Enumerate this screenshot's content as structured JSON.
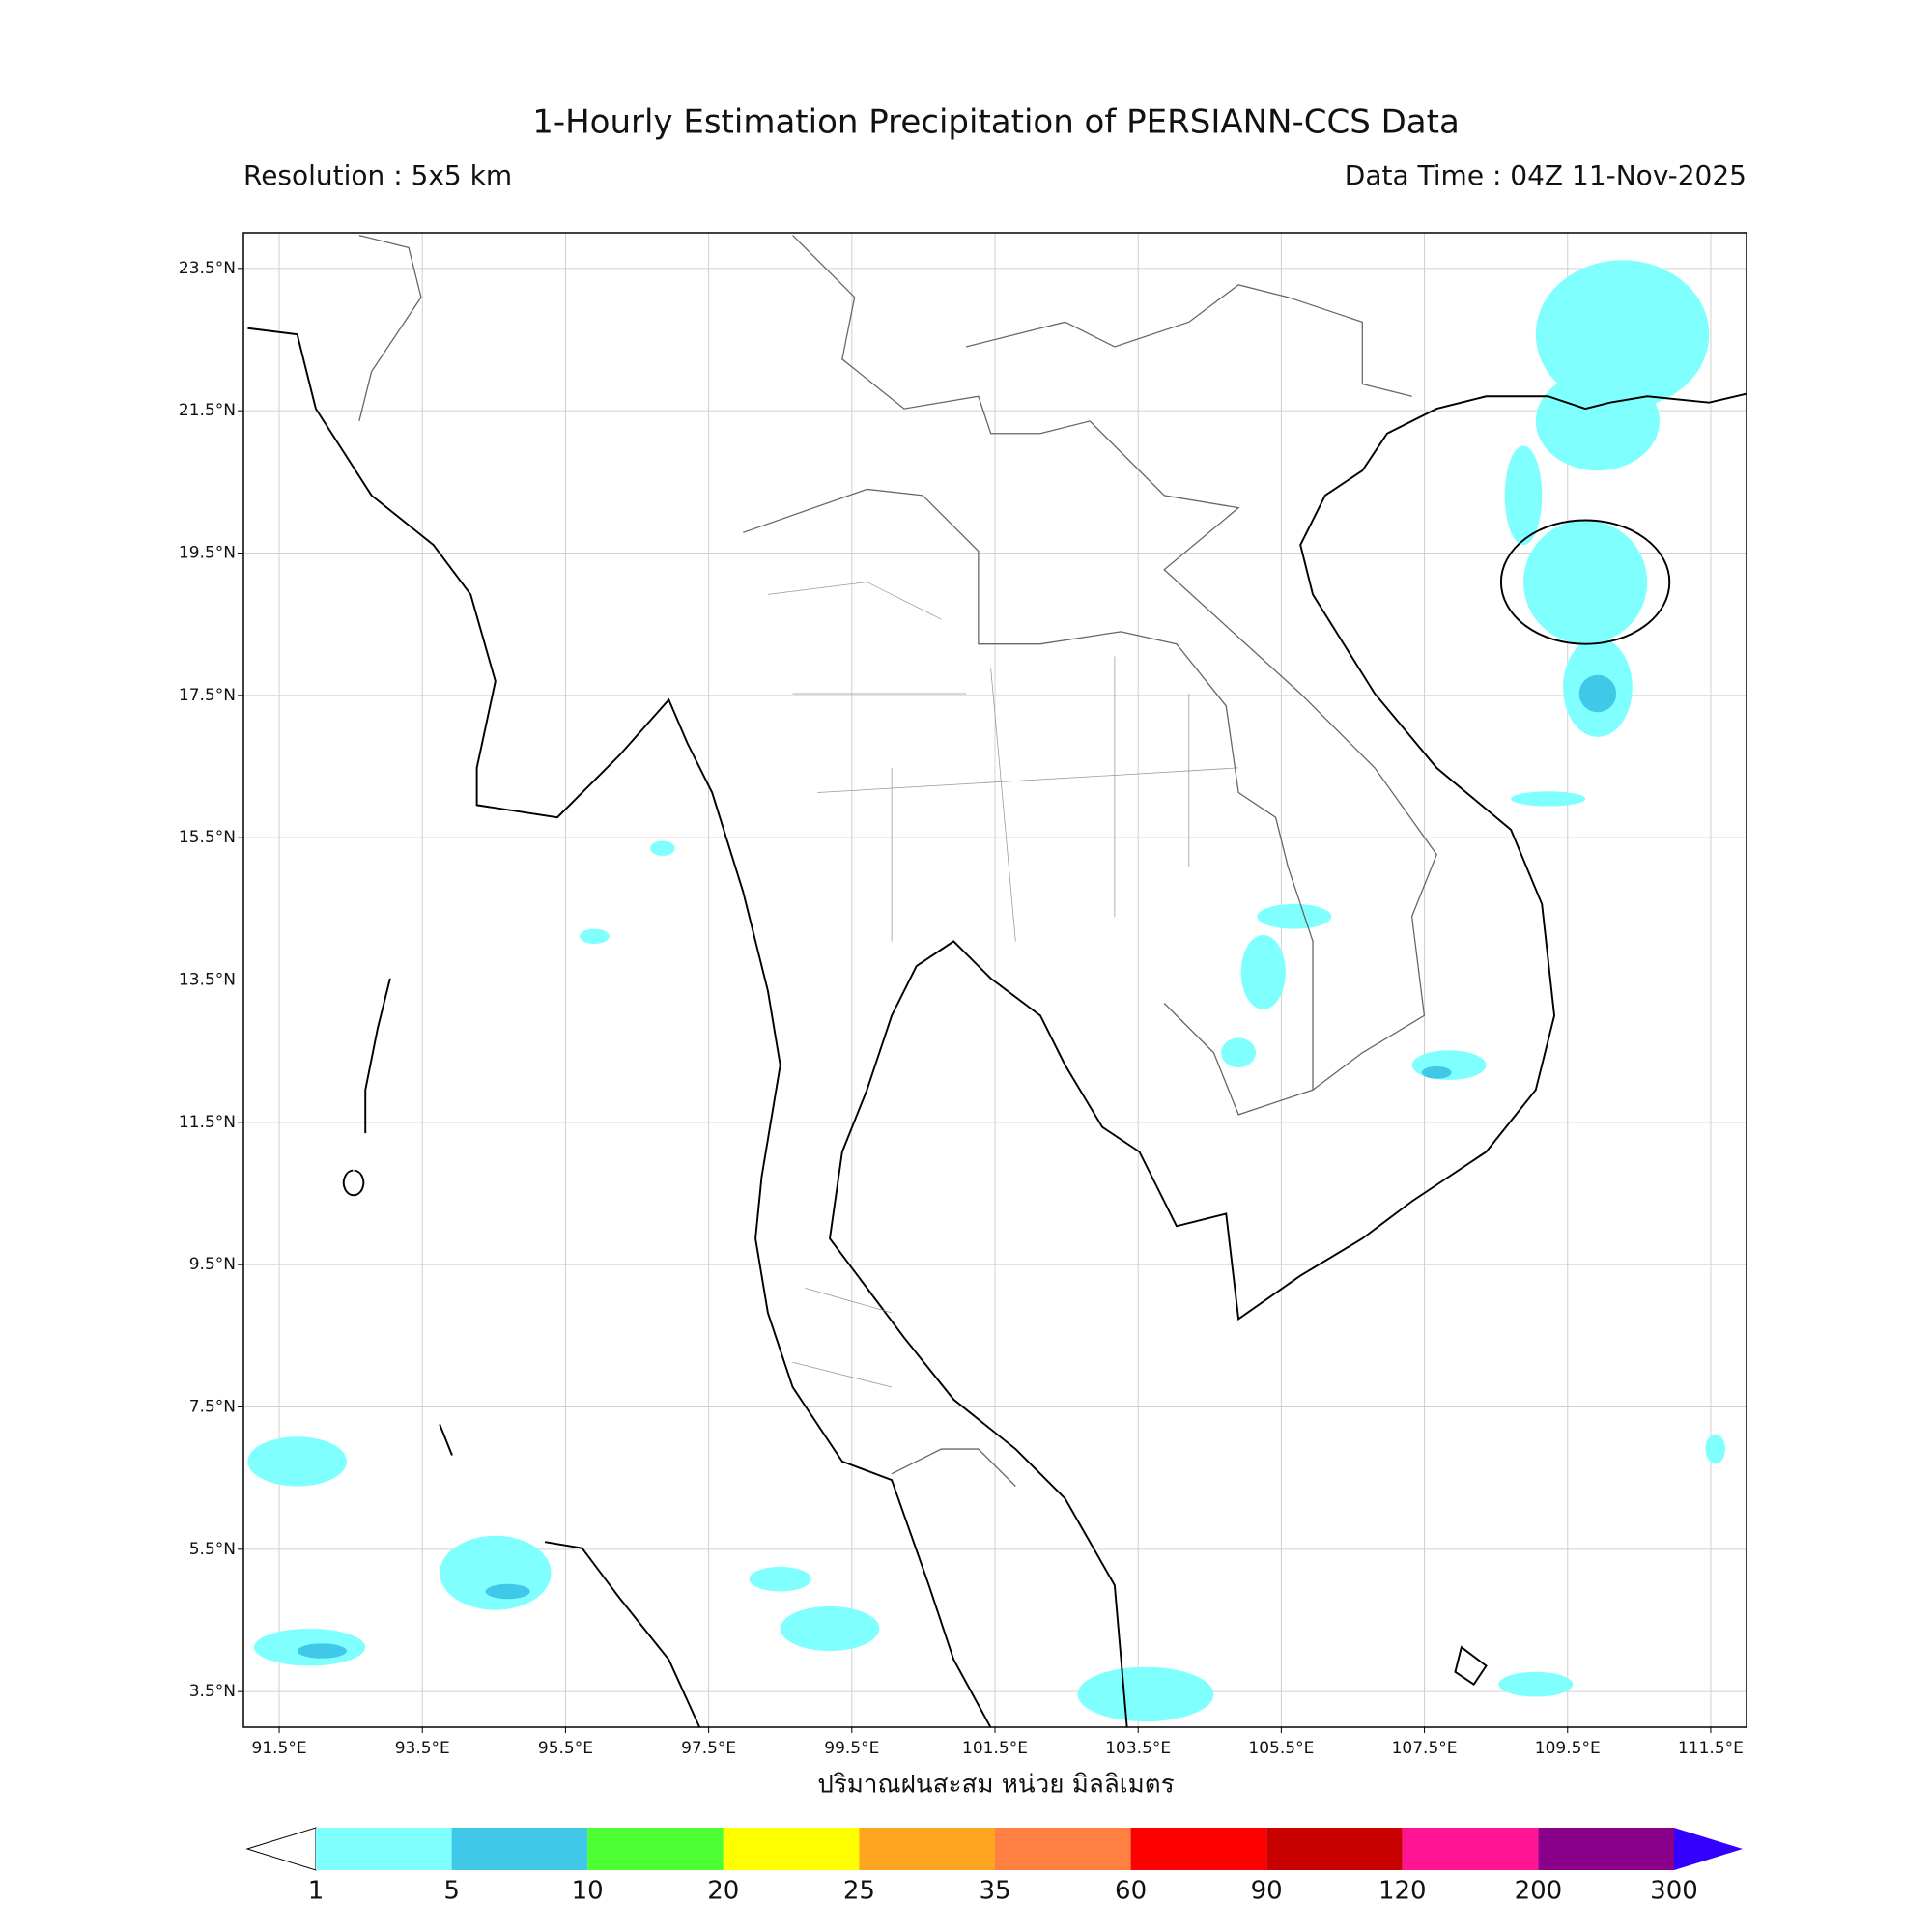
{
  "header": {
    "title": "1-Hourly Estimation Precipitation of PERSIANN-CCS Data",
    "resolution": "Resolution : 5x5 km",
    "data_time": "Data Time : 04Z 11-Nov-2025"
  },
  "map": {
    "lonlim": [
      91,
      112
    ],
    "latlim": [
      3,
      24
    ],
    "xticks": [
      {
        "value": 91.5,
        "label": "91.5°E"
      },
      {
        "value": 93.5,
        "label": "93.5°E"
      },
      {
        "value": 95.5,
        "label": "95.5°E"
      },
      {
        "value": 97.5,
        "label": "97.5°E"
      },
      {
        "value": 99.5,
        "label": "99.5°E"
      },
      {
        "value": 101.5,
        "label": "101.5°E"
      },
      {
        "value": 103.5,
        "label": "103.5°E"
      },
      {
        "value": 105.5,
        "label": "105.5°E"
      },
      {
        "value": 107.5,
        "label": "107.5°E"
      },
      {
        "value": 109.5,
        "label": "109.5°E"
      },
      {
        "value": 111.5,
        "label": "111.5°E"
      }
    ],
    "yticks": [
      {
        "value": 23.5,
        "label": "23.5°N"
      },
      {
        "value": 21.5,
        "label": "21.5°N"
      },
      {
        "value": 19.5,
        "label": "19.5°N"
      },
      {
        "value": 17.5,
        "label": "17.5°N"
      },
      {
        "value": 15.5,
        "label": "15.5°N"
      },
      {
        "value": 13.5,
        "label": "13.5°N"
      },
      {
        "value": 11.5,
        "label": "11.5°N"
      },
      {
        "value": 9.5,
        "label": "9.5°N"
      },
      {
        "value": 7.5,
        "label": "7.5°N"
      },
      {
        "value": 5.5,
        "label": "5.5°N"
      },
      {
        "value": 3.5,
        "label": "3.5°N"
      }
    ],
    "xlabel": "ปริมาณฝนสะสม หน่วย มิลลิเมตร",
    "grid": true
  },
  "colorbar": {
    "levels": [
      1,
      5,
      10,
      20,
      25,
      35,
      60,
      90,
      120,
      200,
      300
    ],
    "colors": [
      "#80ffff",
      "#40c8e8",
      "#4cff33",
      "#ffff00",
      "#ffa520",
      "#ff8040",
      "#ff0000",
      "#c80000",
      "#ff1493",
      "#8b008b"
    ],
    "under_color": "#ffffff",
    "over_color": "#3300ff"
  }
}
